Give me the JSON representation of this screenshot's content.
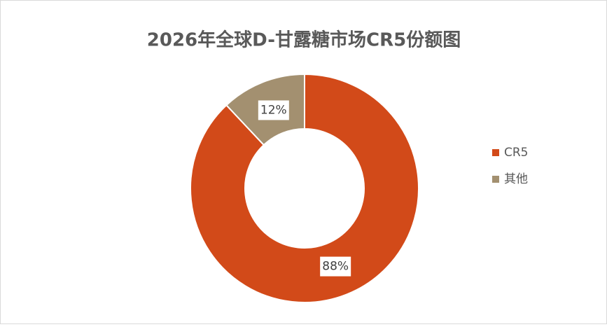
{
  "chart_data": {
    "type": "pie",
    "title": "2026年全球D-甘露糖市场CR5份额图",
    "categories": [
      "CR5",
      "其他"
    ],
    "values": [
      88,
      12
    ],
    "value_labels": [
      "88%",
      "12%"
    ],
    "colors": [
      "#d24a19",
      "#a39070"
    ],
    "donut": true,
    "legend": "right"
  }
}
